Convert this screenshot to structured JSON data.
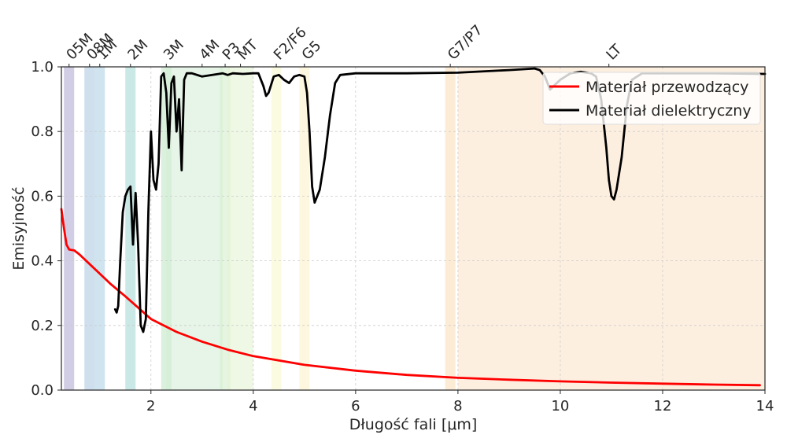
{
  "chart_data": {
    "type": "line",
    "xlabel": "Długość fali [μm]",
    "ylabel": "Emisyjność",
    "xlim": [
      0.25,
      14
    ],
    "ylim": [
      0,
      1.0
    ],
    "x_ticks": [
      2,
      4,
      6,
      8,
      10,
      12,
      14
    ],
    "x_tick_labels": [
      "2",
      "4",
      "6",
      "8",
      "10",
      "12",
      "14"
    ],
    "y_ticks": [
      0.0,
      0.2,
      0.4,
      0.6,
      0.8,
      1.0
    ],
    "y_tick_labels": [
      "0.0",
      "0.2",
      "0.4",
      "0.6",
      "0.8",
      "1.0"
    ],
    "grid": true,
    "legend_position": "top-right",
    "bands": [
      {
        "label": "05M",
        "range": [
          0.3,
          0.5
        ],
        "color": "#a9a4cf",
        "label_at": 0.4
      },
      {
        "label": "08M",
        "range": [
          0.7,
          0.9
        ],
        "color": "#a7c4e0",
        "label_at": 0.8
      },
      {
        "label": "1M",
        "range": [
          0.9,
          1.1
        ],
        "color": "#a9cde2",
        "label_at": 1.0
      },
      {
        "label": "2M",
        "range": [
          1.5,
          1.7
        ],
        "color": "#9fd6cf",
        "label_at": 1.6
      },
      {
        "label": "3M",
        "range": [
          2.2,
          2.4
        ],
        "color": "#bde6c2",
        "label_at": 2.3
      },
      {
        "label": "4M",
        "range": [
          2.3,
          3.4
        ],
        "color": "#d2ecd3",
        "label_at": 3.0
      },
      {
        "label": "P3",
        "range": [
          3.35,
          3.55
        ],
        "color": "#d0ecc8",
        "label_at": 3.45
      },
      {
        "label": "MT",
        "range": [
          3.5,
          4.0
        ],
        "color": "#e2f2cf",
        "label_at": 3.75
      },
      {
        "label": "F2/F6",
        "range": [
          4.35,
          4.55
        ],
        "color": "#f7f7c8",
        "label_at": 4.45
      },
      {
        "label": "G5",
        "range": [
          4.9,
          5.1
        ],
        "color": "#fbf0c4",
        "label_at": 5.0
      },
      {
        "label": "G7/P7",
        "range": [
          7.75,
          7.95
        ],
        "color": "#f9dcb4",
        "label_at": 7.85
      },
      {
        "label": "LT",
        "range": [
          8.0,
          14.0
        ],
        "color": "#fce1c6",
        "label_at": 10.95
      }
    ],
    "series": [
      {
        "name": "Materiał przewodzący",
        "color": "#ff0000",
        "x": [
          0.25,
          0.3,
          0.35,
          0.4,
          0.5,
          0.6,
          0.8,
          1.0,
          1.2,
          1.5,
          2.0,
          2.5,
          3.0,
          3.5,
          4.0,
          5.0,
          6.0,
          7.0,
          8.0,
          9.0,
          10.0,
          11.0,
          12.0,
          13.0,
          13.9
        ],
        "y": [
          0.56,
          0.5,
          0.45,
          0.435,
          0.432,
          0.42,
          0.39,
          0.36,
          0.33,
          0.29,
          0.22,
          0.18,
          0.15,
          0.125,
          0.105,
          0.078,
          0.06,
          0.047,
          0.038,
          0.032,
          0.027,
          0.023,
          0.02,
          0.017,
          0.015
        ]
      },
      {
        "name": "Materiał dielektryczny",
        "color": "#000000",
        "x": [
          1.3,
          1.33,
          1.36,
          1.4,
          1.45,
          1.5,
          1.55,
          1.6,
          1.65,
          1.7,
          1.75,
          1.8,
          1.85,
          1.9,
          1.95,
          2.0,
          2.05,
          2.1,
          2.15,
          2.2,
          2.25,
          2.3,
          2.35,
          2.4,
          2.45,
          2.5,
          2.55,
          2.6,
          2.65,
          2.7,
          2.75,
          2.8,
          3.0,
          3.2,
          3.4,
          3.5,
          3.6,
          3.8,
          4.0,
          4.1,
          4.2,
          4.25,
          4.3,
          4.4,
          4.5,
          4.6,
          4.7,
          4.8,
          4.9,
          5.0,
          5.05,
          5.1,
          5.15,
          5.2,
          5.3,
          5.4,
          5.5,
          5.6,
          5.7,
          6.0,
          7.0,
          8.0,
          9.0,
          9.5,
          9.6,
          9.7,
          9.8,
          10.0,
          10.2,
          10.4,
          10.6,
          10.7,
          10.8,
          10.9,
          10.95,
          11.0,
          11.05,
          11.1,
          11.2,
          11.3,
          11.4,
          11.6,
          12.0,
          13.0,
          14.0
        ],
        "y": [
          0.25,
          0.24,
          0.26,
          0.4,
          0.55,
          0.6,
          0.62,
          0.63,
          0.45,
          0.61,
          0.45,
          0.2,
          0.18,
          0.22,
          0.55,
          0.8,
          0.65,
          0.62,
          0.7,
          0.97,
          0.98,
          0.92,
          0.75,
          0.95,
          0.97,
          0.8,
          0.9,
          0.68,
          0.96,
          0.98,
          0.98,
          0.98,
          0.97,
          0.975,
          0.98,
          0.975,
          0.98,
          0.978,
          0.98,
          0.98,
          0.94,
          0.91,
          0.92,
          0.97,
          0.975,
          0.96,
          0.95,
          0.97,
          0.975,
          0.97,
          0.92,
          0.8,
          0.63,
          0.58,
          0.62,
          0.72,
          0.85,
          0.95,
          0.975,
          0.98,
          0.98,
          0.982,
          0.99,
          0.995,
          0.99,
          0.97,
          0.93,
          0.96,
          0.98,
          0.985,
          0.98,
          0.97,
          0.9,
          0.75,
          0.65,
          0.6,
          0.59,
          0.62,
          0.72,
          0.88,
          0.96,
          0.98,
          0.98,
          0.98,
          0.978
        ]
      }
    ]
  }
}
